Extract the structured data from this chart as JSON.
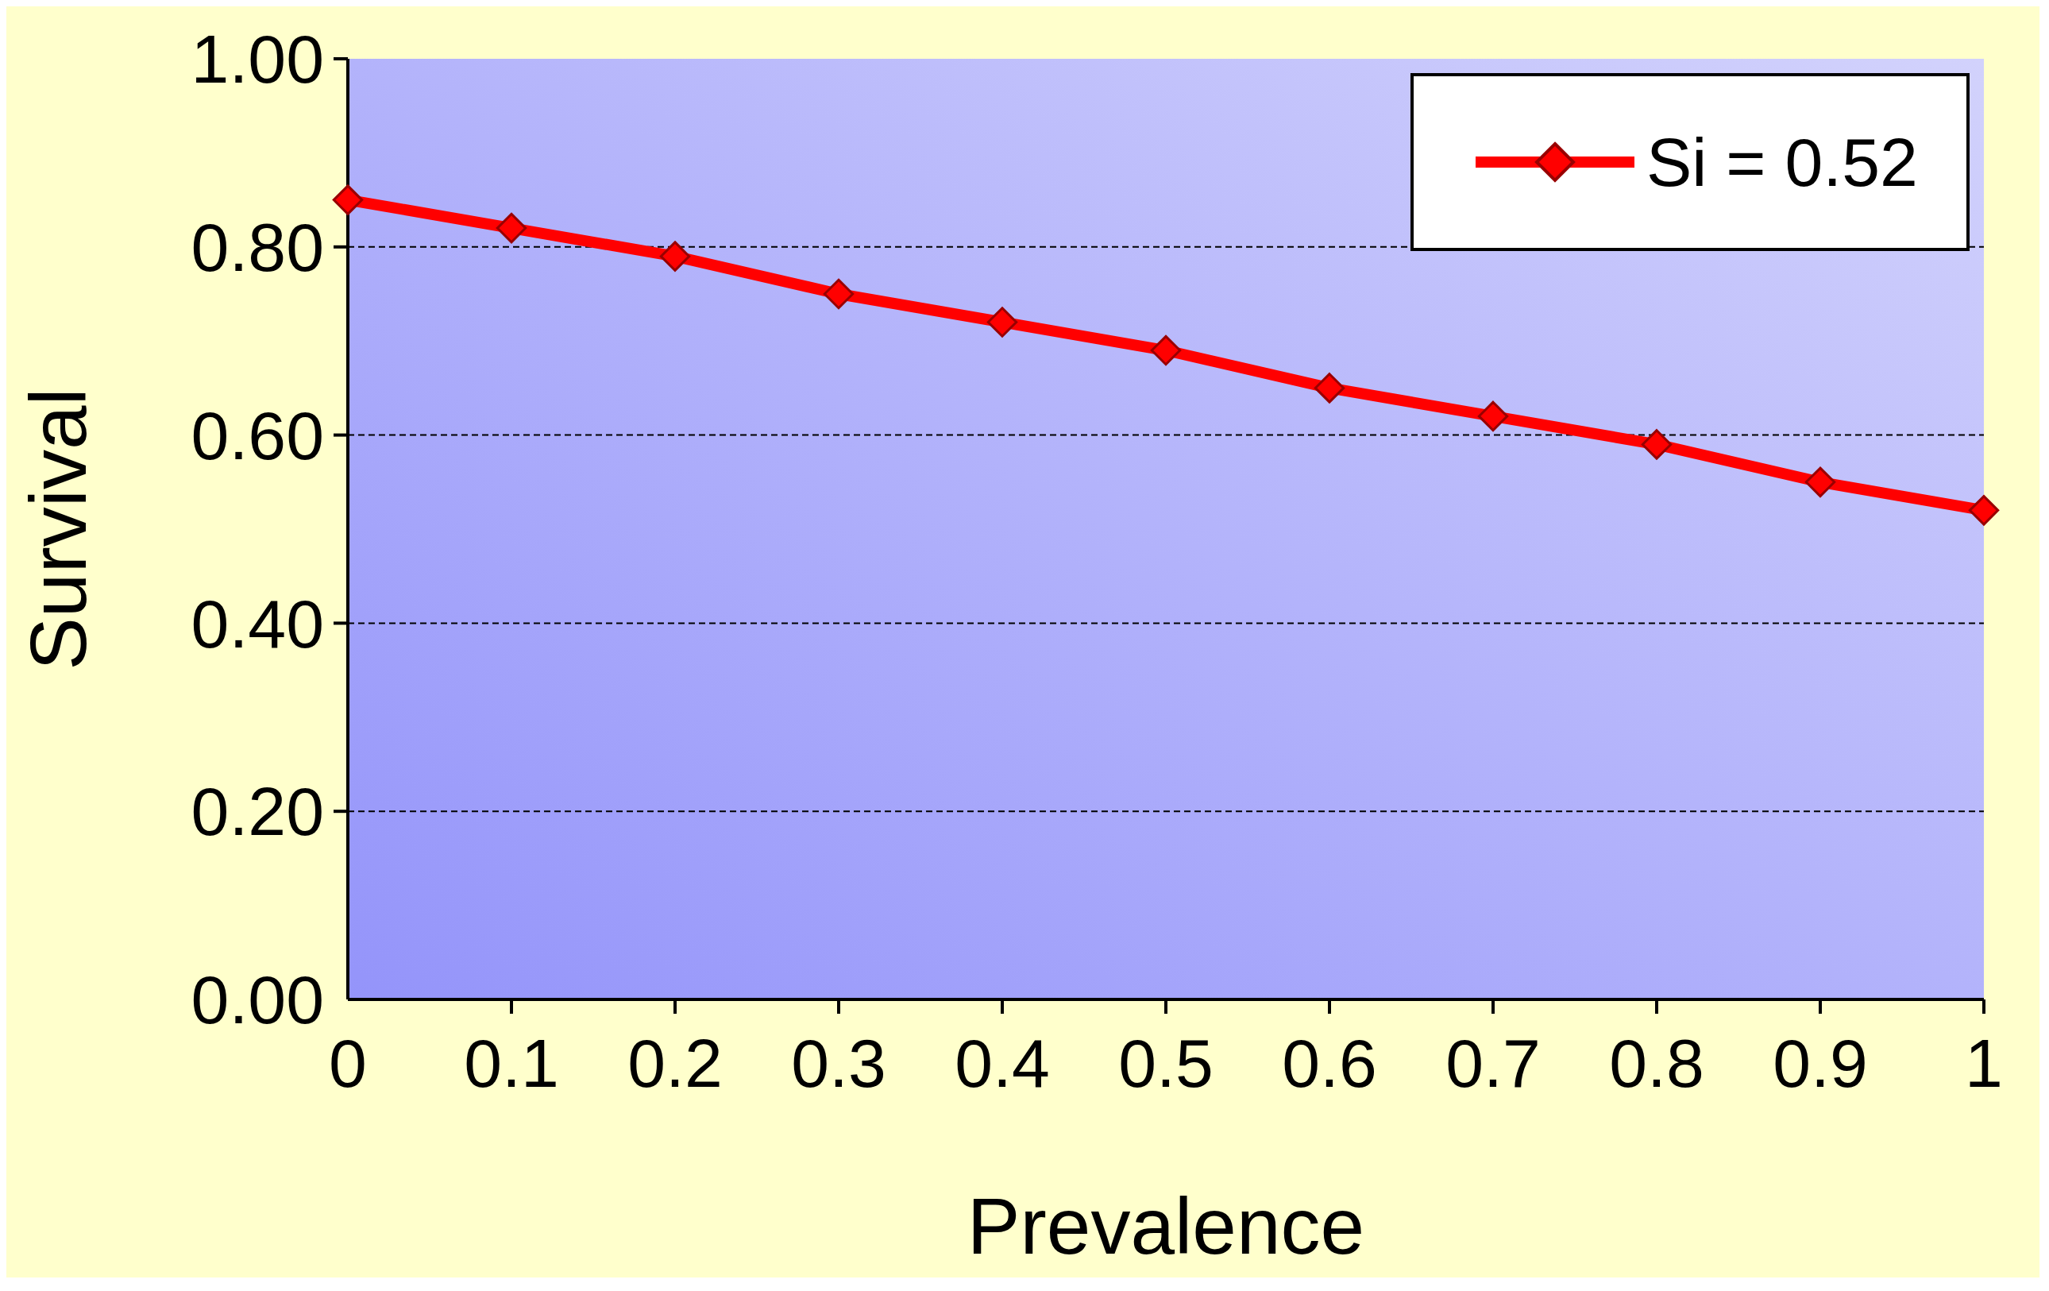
{
  "chart_data": {
    "type": "line",
    "xlabel": "Prevalence",
    "ylabel": "Survival",
    "x": [
      0,
      0.1,
      0.2,
      0.3,
      0.4,
      0.5,
      0.6,
      0.7,
      0.8,
      0.9,
      1
    ],
    "series": [
      {
        "name": "Si = 0.52",
        "color": "#ff0000",
        "values": [
          0.85,
          0.82,
          0.79,
          0.75,
          0.72,
          0.69,
          0.65,
          0.62,
          0.59,
          0.55,
          0.52
        ]
      }
    ],
    "xlim": [
      0,
      1
    ],
    "xticks": [
      0,
      0.1,
      0.2,
      0.3,
      0.4,
      0.5,
      0.6,
      0.7,
      0.8,
      0.9,
      1
    ],
    "ylim": [
      0,
      1
    ],
    "yticks": [
      {
        "value": 0,
        "label": "0.00"
      },
      {
        "value": 0.2,
        "label": "0.20"
      },
      {
        "value": 0.4,
        "label": "0.40"
      },
      {
        "value": 0.6,
        "label": "0.60"
      },
      {
        "value": 0.8,
        "label": "0.80"
      },
      {
        "value": 1,
        "label": "1.00"
      }
    ],
    "grid": "y",
    "legend": "top right",
    "marker": "diamond",
    "line_style": "solid"
  }
}
